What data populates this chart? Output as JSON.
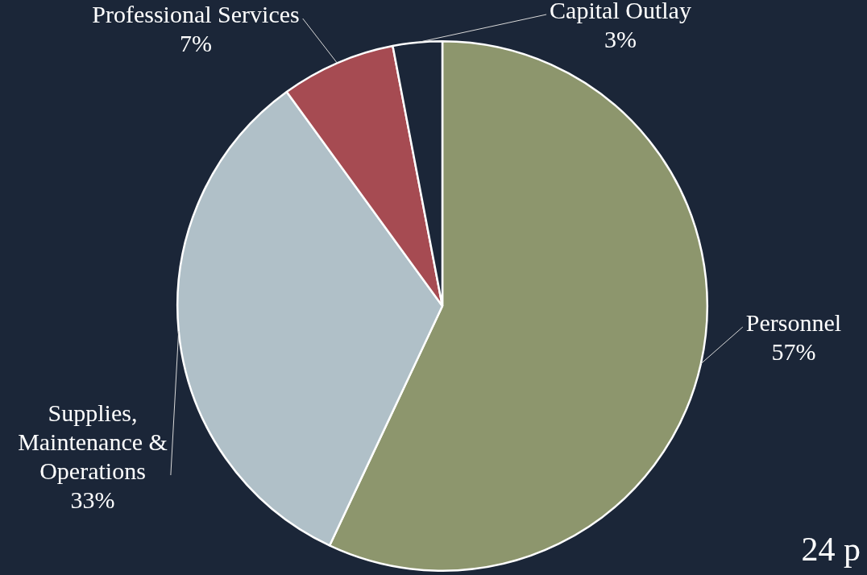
{
  "chart_data": {
    "type": "pie",
    "categories": [
      "Personnel",
      "Supplies, Maintenance & Operations",
      "Professional Services",
      "Capital Outlay"
    ],
    "values": [
      57,
      33,
      7,
      3
    ],
    "colors": [
      "#8d966d",
      "#b0c0c8",
      "#a64b52",
      "#1b2638"
    ],
    "value_labels": [
      "57%",
      "33%",
      "7%",
      "3%"
    ],
    "annotations": [
      "24 p"
    ],
    "legend": false
  }
}
